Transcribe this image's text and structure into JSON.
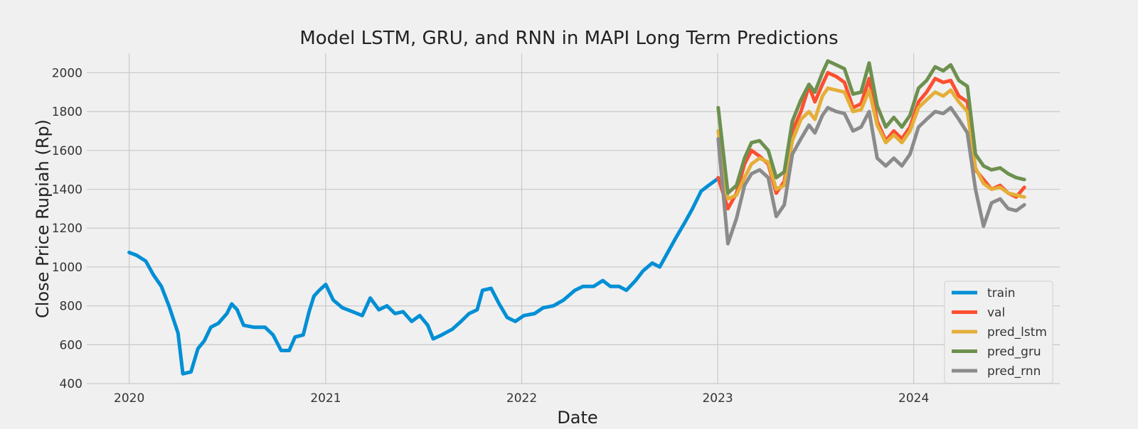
{
  "chart_data": {
    "type": "line",
    "title": "Model LSTM, GRU, and RNN in MAPI Long Term Predictions",
    "xlabel": "Date",
    "ylabel": "Close Price Rupiah (Rp)",
    "xlim": [
      "2019-10-14",
      "2024-09-29"
    ],
    "ylim": [
      400,
      2100
    ],
    "x_ticks": [
      "2020",
      "2021",
      "2022",
      "2023",
      "2024"
    ],
    "y_ticks": [
      400,
      600,
      800,
      1000,
      1200,
      1400,
      1600,
      1800,
      2000
    ],
    "grid": true,
    "legend_position": "lower-right",
    "series": [
      {
        "name": "train",
        "color": "#008fd5",
        "points": [
          [
            "2020-01-01",
            1075
          ],
          [
            "2020-01-15",
            1060
          ],
          [
            "2020-02-01",
            1030
          ],
          [
            "2020-02-15",
            960
          ],
          [
            "2020-03-01",
            900
          ],
          [
            "2020-03-15",
            800
          ],
          [
            "2020-04-01",
            660
          ],
          [
            "2020-04-10",
            450
          ],
          [
            "2020-04-25",
            460
          ],
          [
            "2020-05-08",
            580
          ],
          [
            "2020-05-20",
            620
          ],
          [
            "2020-06-01",
            690
          ],
          [
            "2020-06-15",
            710
          ],
          [
            "2020-07-01",
            760
          ],
          [
            "2020-07-10",
            810
          ],
          [
            "2020-07-20",
            780
          ],
          [
            "2020-08-01",
            700
          ],
          [
            "2020-08-20",
            690
          ],
          [
            "2020-09-10",
            690
          ],
          [
            "2020-09-25",
            650
          ],
          [
            "2020-10-10",
            570
          ],
          [
            "2020-10-25",
            570
          ],
          [
            "2020-11-05",
            640
          ],
          [
            "2020-11-20",
            650
          ],
          [
            "2020-12-01",
            770
          ],
          [
            "2020-12-10",
            850
          ],
          [
            "2020-12-20",
            880
          ],
          [
            "2021-01-01",
            910
          ],
          [
            "2021-01-15",
            830
          ],
          [
            "2021-02-01",
            790
          ],
          [
            "2021-02-20",
            770
          ],
          [
            "2021-03-10",
            750
          ],
          [
            "2021-03-25",
            840
          ],
          [
            "2021-04-10",
            780
          ],
          [
            "2021-04-25",
            800
          ],
          [
            "2021-05-10",
            760
          ],
          [
            "2021-05-25",
            770
          ],
          [
            "2021-06-10",
            720
          ],
          [
            "2021-06-25",
            750
          ],
          [
            "2021-07-10",
            700
          ],
          [
            "2021-07-20",
            630
          ],
          [
            "2021-08-05",
            650
          ],
          [
            "2021-08-25",
            680
          ],
          [
            "2021-09-10",
            720
          ],
          [
            "2021-09-25",
            760
          ],
          [
            "2021-10-10",
            780
          ],
          [
            "2021-10-20",
            880
          ],
          [
            "2021-11-05",
            890
          ],
          [
            "2021-11-20",
            810
          ],
          [
            "2021-12-05",
            740
          ],
          [
            "2021-12-20",
            720
          ],
          [
            "2022-01-05",
            750
          ],
          [
            "2022-01-25",
            760
          ],
          [
            "2022-02-10",
            790
          ],
          [
            "2022-03-01",
            800
          ],
          [
            "2022-03-20",
            830
          ],
          [
            "2022-04-10",
            880
          ],
          [
            "2022-04-25",
            900
          ],
          [
            "2022-05-15",
            900
          ],
          [
            "2022-06-01",
            930
          ],
          [
            "2022-06-15",
            900
          ],
          [
            "2022-07-01",
            900
          ],
          [
            "2022-07-15",
            880
          ],
          [
            "2022-08-01",
            930
          ],
          [
            "2022-08-15",
            980
          ],
          [
            "2022-09-01",
            1020
          ],
          [
            "2022-09-15",
            1000
          ],
          [
            "2022-10-01",
            1080
          ],
          [
            "2022-10-15",
            1150
          ],
          [
            "2022-11-01",
            1230
          ],
          [
            "2022-11-15",
            1300
          ],
          [
            "2022-12-01",
            1390
          ],
          [
            "2022-12-15",
            1420
          ],
          [
            "2022-12-30",
            1450
          ]
        ]
      },
      {
        "name": "val",
        "color": "#fc4f30",
        "points": [
          [
            "2023-01-02",
            1460
          ],
          [
            "2023-01-20",
            1300
          ],
          [
            "2023-02-05",
            1380
          ],
          [
            "2023-02-20",
            1530
          ],
          [
            "2023-03-05",
            1600
          ],
          [
            "2023-03-20",
            1570
          ],
          [
            "2023-04-05",
            1530
          ],
          [
            "2023-04-20",
            1380
          ],
          [
            "2023-05-05",
            1440
          ],
          [
            "2023-05-20",
            1700
          ],
          [
            "2023-06-05",
            1800
          ],
          [
            "2023-06-20",
            1930
          ],
          [
            "2023-07-01",
            1850
          ],
          [
            "2023-07-15",
            1940
          ],
          [
            "2023-07-25",
            2000
          ],
          [
            "2023-08-10",
            1980
          ],
          [
            "2023-08-25",
            1950
          ],
          [
            "2023-09-10",
            1820
          ],
          [
            "2023-09-25",
            1840
          ],
          [
            "2023-10-10",
            1970
          ],
          [
            "2023-10-25",
            1750
          ],
          [
            "2023-11-10",
            1650
          ],
          [
            "2023-11-25",
            1700
          ],
          [
            "2023-12-10",
            1660
          ],
          [
            "2023-12-25",
            1720
          ],
          [
            "2024-01-10",
            1850
          ],
          [
            "2024-01-25",
            1900
          ],
          [
            "2024-02-10",
            1970
          ],
          [
            "2024-02-25",
            1950
          ],
          [
            "2024-03-10",
            1960
          ],
          [
            "2024-03-25",
            1880
          ],
          [
            "2024-04-10",
            1850
          ],
          [
            "2024-04-25",
            1500
          ],
          [
            "2024-05-10",
            1450
          ],
          [
            "2024-05-25",
            1400
          ],
          [
            "2024-06-10",
            1420
          ],
          [
            "2024-06-25",
            1380
          ],
          [
            "2024-07-10",
            1360
          ],
          [
            "2024-07-25",
            1410
          ]
        ]
      },
      {
        "name": "pred_lstm",
        "color": "#e5ae38",
        "points": [
          [
            "2023-01-02",
            1700
          ],
          [
            "2023-01-20",
            1350
          ],
          [
            "2023-02-05",
            1370
          ],
          [
            "2023-02-20",
            1460
          ],
          [
            "2023-03-05",
            1530
          ],
          [
            "2023-03-20",
            1560
          ],
          [
            "2023-04-05",
            1540
          ],
          [
            "2023-04-20",
            1400
          ],
          [
            "2023-05-05",
            1420
          ],
          [
            "2023-05-20",
            1650
          ],
          [
            "2023-06-05",
            1760
          ],
          [
            "2023-06-20",
            1800
          ],
          [
            "2023-07-01",
            1760
          ],
          [
            "2023-07-15",
            1880
          ],
          [
            "2023-07-25",
            1920
          ],
          [
            "2023-08-10",
            1910
          ],
          [
            "2023-08-25",
            1900
          ],
          [
            "2023-09-10",
            1800
          ],
          [
            "2023-09-25",
            1810
          ],
          [
            "2023-10-10",
            1910
          ],
          [
            "2023-10-25",
            1730
          ],
          [
            "2023-11-10",
            1640
          ],
          [
            "2023-11-25",
            1680
          ],
          [
            "2023-12-10",
            1640
          ],
          [
            "2023-12-25",
            1700
          ],
          [
            "2024-01-10",
            1820
          ],
          [
            "2024-01-25",
            1860
          ],
          [
            "2024-02-10",
            1900
          ],
          [
            "2024-02-25",
            1880
          ],
          [
            "2024-03-10",
            1910
          ],
          [
            "2024-03-25",
            1850
          ],
          [
            "2024-04-10",
            1800
          ],
          [
            "2024-04-25",
            1510
          ],
          [
            "2024-05-10",
            1430
          ],
          [
            "2024-05-25",
            1400
          ],
          [
            "2024-06-10",
            1410
          ],
          [
            "2024-06-25",
            1380
          ],
          [
            "2024-07-10",
            1370
          ],
          [
            "2024-07-25",
            1360
          ]
        ]
      },
      {
        "name": "pred_gru",
        "color": "#6d904f",
        "points": [
          [
            "2023-01-02",
            1820
          ],
          [
            "2023-01-20",
            1380
          ],
          [
            "2023-02-05",
            1420
          ],
          [
            "2023-02-20",
            1560
          ],
          [
            "2023-03-05",
            1640
          ],
          [
            "2023-03-20",
            1650
          ],
          [
            "2023-04-05",
            1600
          ],
          [
            "2023-04-20",
            1460
          ],
          [
            "2023-05-05",
            1490
          ],
          [
            "2023-05-20",
            1750
          ],
          [
            "2023-06-05",
            1860
          ],
          [
            "2023-06-20",
            1940
          ],
          [
            "2023-07-01",
            1900
          ],
          [
            "2023-07-15",
            2000
          ],
          [
            "2023-07-25",
            2060
          ],
          [
            "2023-08-10",
            2040
          ],
          [
            "2023-08-25",
            2020
          ],
          [
            "2023-09-10",
            1890
          ],
          [
            "2023-09-25",
            1900
          ],
          [
            "2023-10-10",
            2050
          ],
          [
            "2023-10-25",
            1830
          ],
          [
            "2023-11-10",
            1720
          ],
          [
            "2023-11-25",
            1770
          ],
          [
            "2023-12-10",
            1720
          ],
          [
            "2023-12-25",
            1780
          ],
          [
            "2024-01-10",
            1920
          ],
          [
            "2024-01-25",
            1960
          ],
          [
            "2024-02-10",
            2030
          ],
          [
            "2024-02-25",
            2010
          ],
          [
            "2024-03-10",
            2040
          ],
          [
            "2024-03-25",
            1960
          ],
          [
            "2024-04-10",
            1930
          ],
          [
            "2024-04-25",
            1580
          ],
          [
            "2024-05-10",
            1520
          ],
          [
            "2024-05-25",
            1500
          ],
          [
            "2024-06-10",
            1510
          ],
          [
            "2024-06-25",
            1480
          ],
          [
            "2024-07-10",
            1460
          ],
          [
            "2024-07-25",
            1450
          ]
        ]
      },
      {
        "name": "pred_rnn",
        "color": "#8b8b8b",
        "points": [
          [
            "2023-01-02",
            1660
          ],
          [
            "2023-01-20",
            1120
          ],
          [
            "2023-02-05",
            1250
          ],
          [
            "2023-02-20",
            1420
          ],
          [
            "2023-03-05",
            1480
          ],
          [
            "2023-03-20",
            1500
          ],
          [
            "2023-04-05",
            1460
          ],
          [
            "2023-04-20",
            1260
          ],
          [
            "2023-05-05",
            1320
          ],
          [
            "2023-05-20",
            1580
          ],
          [
            "2023-06-05",
            1660
          ],
          [
            "2023-06-20",
            1730
          ],
          [
            "2023-07-01",
            1690
          ],
          [
            "2023-07-15",
            1780
          ],
          [
            "2023-07-25",
            1820
          ],
          [
            "2023-08-10",
            1800
          ],
          [
            "2023-08-25",
            1790
          ],
          [
            "2023-09-10",
            1700
          ],
          [
            "2023-09-25",
            1720
          ],
          [
            "2023-10-10",
            1800
          ],
          [
            "2023-10-25",
            1560
          ],
          [
            "2023-11-10",
            1520
          ],
          [
            "2023-11-25",
            1560
          ],
          [
            "2023-12-10",
            1520
          ],
          [
            "2023-12-25",
            1580
          ],
          [
            "2024-01-10",
            1720
          ],
          [
            "2024-01-25",
            1760
          ],
          [
            "2024-02-10",
            1800
          ],
          [
            "2024-02-25",
            1790
          ],
          [
            "2024-03-10",
            1820
          ],
          [
            "2024-03-25",
            1760
          ],
          [
            "2024-04-10",
            1690
          ],
          [
            "2024-04-25",
            1400
          ],
          [
            "2024-05-10",
            1210
          ],
          [
            "2024-05-25",
            1330
          ],
          [
            "2024-06-10",
            1350
          ],
          [
            "2024-06-25",
            1300
          ],
          [
            "2024-07-10",
            1290
          ],
          [
            "2024-07-25",
            1320
          ]
        ]
      }
    ]
  }
}
